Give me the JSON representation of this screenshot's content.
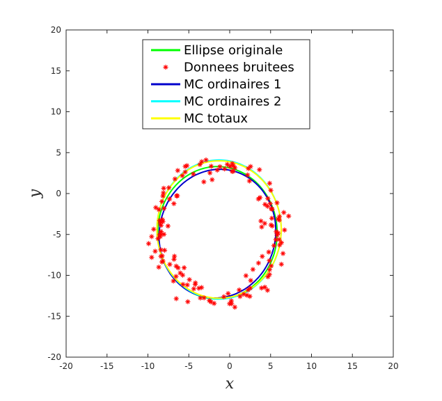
{
  "chart_data": {
    "type": "scatter",
    "xlabel": "x",
    "ylabel": "y",
    "xlim": [
      -20,
      20
    ],
    "ylim": [
      -20,
      20
    ],
    "xticks": [
      -20,
      -15,
      -10,
      -5,
      0,
      5,
      10,
      15,
      20
    ],
    "yticks": [
      -20,
      -15,
      -10,
      -5,
      0,
      5,
      10,
      15,
      20
    ],
    "grid": false,
    "legend_position": "top-center",
    "series": [
      {
        "name": "Ellipse originale",
        "kind": "ellipse",
        "color": "#00ff00",
        "center": [
          -1.5,
          -4.8
        ],
        "radii": [
          7.3,
          8.1
        ],
        "angle_deg": 0
      },
      {
        "name": "Donnees bruitees",
        "kind": "scatter",
        "marker": "asterisk",
        "color": "#ff0000",
        "center": [
          -1.5,
          -4.8
        ],
        "radii": [
          7.3,
          8.1
        ],
        "count": 150,
        "noise": 0.9
      },
      {
        "name": "MC ordinaires 1",
        "kind": "ellipse",
        "color": "#0000cc",
        "center": [
          -1.5,
          -4.9
        ],
        "radii": [
          7.1,
          7.9
        ],
        "angle_deg": -12
      },
      {
        "name": "MC ordinaires 2",
        "kind": "ellipse",
        "color": "#00ffff",
        "center": [
          -1.3,
          -4.4
        ],
        "radii": [
          7.6,
          8.5
        ],
        "angle_deg": 0
      },
      {
        "name": "MC totaux",
        "kind": "ellipse",
        "color": "#ffff00",
        "center": [
          -1.3,
          -4.4
        ],
        "radii": [
          7.6,
          8.4
        ],
        "angle_deg": 0
      }
    ]
  }
}
